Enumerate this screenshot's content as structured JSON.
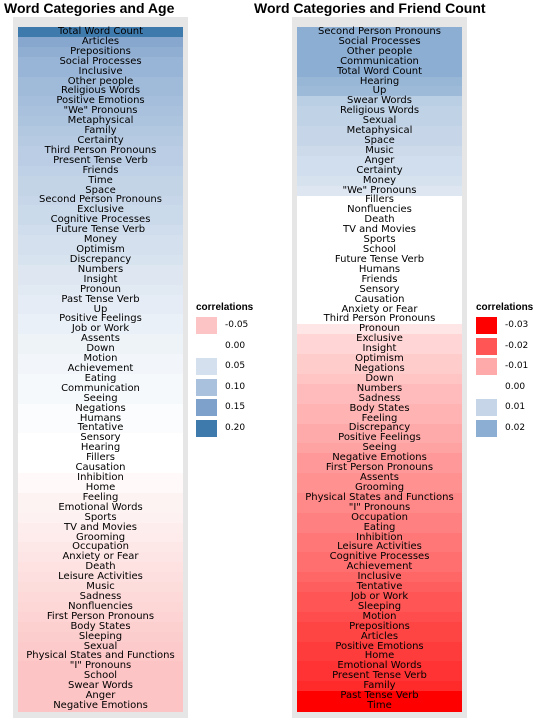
{
  "chart_data": [
    {
      "type": "heatmap",
      "title": "Word Categories and Age",
      "legend": {
        "title": "correlations",
        "position": "right",
        "items": [
          {
            "label": "-0.05",
            "color": "#fcc4c4"
          },
          {
            "label": "0.00",
            "color": "#ffffff"
          },
          {
            "label": "0.05",
            "color": "#d4e0ee"
          },
          {
            "label": "0.10",
            "color": "#a9c1dd"
          },
          {
            "label": "0.15",
            "color": "#7ea1cb"
          },
          {
            "label": "0.20",
            "color": "#3f7aad"
          }
        ]
      },
      "categories": [
        "Total Word Count",
        "Articles",
        "Prepositions",
        "Social Processes",
        "Inclusive",
        "Other people",
        "Religious Words",
        "Positive Emotions",
        "\"We\" Pronouns",
        "Metaphysical",
        "Family",
        "Certainty",
        "Third Person Pronouns",
        "Present Tense Verb",
        "Friends",
        "Time",
        "Space",
        "Second Person Pronouns",
        "Exclusive",
        "Cognitive Processes",
        "Future Tense Verb",
        "Money",
        "Optimism",
        "Discrepancy",
        "Numbers",
        "Insight",
        "Pronoun",
        "Past Tense Verb",
        "Up",
        "Positive Feelings",
        "Job or Work",
        "Assents",
        "Down",
        "Motion",
        "Achievement",
        "Eating",
        "Communication",
        "Seeing",
        "Negations",
        "Humans",
        "Tentative",
        "Sensory",
        "Hearing",
        "Fillers",
        "Causation",
        "Inhibition",
        "Home",
        "Feeling",
        "Emotional Words",
        "Sports",
        "TV and Movies",
        "Grooming",
        "Occupation",
        "Anxiety or Fear",
        "Death",
        "Leisure Activities",
        "Music",
        "Sadness",
        "Nonfluencies",
        "First Person Pronouns",
        "Body States",
        "Sleeping",
        "Sexual",
        "Physical States and Functions",
        "\"I\" Pronouns",
        "School",
        "Swear Words",
        "Anger",
        "Negative Emotions"
      ],
      "values": [
        0.22,
        0.14,
        0.13,
        0.12,
        0.12,
        0.11,
        0.11,
        0.105,
        0.1,
        0.095,
        0.09,
        0.085,
        0.08,
        0.08,
        0.075,
        0.07,
        0.07,
        0.065,
        0.06,
        0.06,
        0.055,
        0.05,
        0.05,
        0.045,
        0.04,
        0.04,
        0.035,
        0.03,
        0.03,
        0.025,
        0.025,
        0.02,
        0.02,
        0.015,
        0.015,
        0.01,
        0.01,
        0.01,
        0.005,
        0.005,
        0.005,
        0.0,
        0.0,
        0.0,
        0.0,
        -0.005,
        -0.005,
        -0.01,
        -0.01,
        -0.012,
        -0.015,
        -0.017,
        -0.02,
        -0.022,
        -0.025,
        -0.027,
        -0.03,
        -0.032,
        -0.035,
        -0.037,
        -0.04,
        -0.042,
        -0.045,
        -0.047,
        -0.05,
        -0.052,
        -0.055,
        -0.06,
        -0.07
      ]
    },
    {
      "type": "heatmap",
      "title": "Word Categories and Friend Count",
      "legend": {
        "title": "correlations",
        "position": "right",
        "items": [
          {
            "label": "-0.03",
            "color": "#ff0000"
          },
          {
            "label": "-0.02",
            "color": "#ff5555"
          },
          {
            "label": "-0.01",
            "color": "#ffaaaa"
          },
          {
            "label": "0.00",
            "color": "#ffffff"
          },
          {
            "label": "0.01",
            "color": "#c6d6e8"
          },
          {
            "label": "0.02",
            "color": "#8caed2"
          }
        ]
      },
      "categories": [
        "Second Person Pronouns",
        "Social Processes",
        "Other people",
        "Communication",
        "Total Word Count",
        "Hearing",
        "Up",
        "Swear Words",
        "Religious Words",
        "Sexual",
        "Metaphysical",
        "Space",
        "Music",
        "Anger",
        "Certainty",
        "Money",
        "\"We\" Pronouns",
        "Fillers",
        "Nonfluencies",
        "Death",
        "TV and Movies",
        "Sports",
        "School",
        "Future Tense Verb",
        "Humans",
        "Friends",
        "Sensory",
        "Causation",
        "Anxiety or Fear",
        "Third Person Pronouns",
        "Pronoun",
        "Exclusive",
        "Insight",
        "Optimism",
        "Negations",
        "Down",
        "Numbers",
        "Sadness",
        "Body States",
        "Feeling",
        "Discrepancy",
        "Positive Feelings",
        "Seeing",
        "Negative Emotions",
        "First Person Pronouns",
        "Assents",
        "Grooming",
        "Physical States and Functions",
        "\"I\" Pronouns",
        "Occupation",
        "Eating",
        "Inhibition",
        "Leisure Activities",
        "Cognitive Processes",
        "Achievement",
        "Inclusive",
        "Tentative",
        "Job or Work",
        "Sleeping",
        "Motion",
        "Prepositions",
        "Articles",
        "Positive Emotions",
        "Home",
        "Emotional Words",
        "Present Tense Verb",
        "Family",
        "Past Tense Verb",
        "Time"
      ],
      "values": [
        0.03,
        0.022,
        0.022,
        0.021,
        0.02,
        0.018,
        0.017,
        0.012,
        0.011,
        0.011,
        0.01,
        0.01,
        0.009,
        0.008,
        0.008,
        0.007,
        0.006,
        0.0,
        0.0,
        0.0,
        0.0,
        0.0,
        0.0,
        0.0,
        0.0,
        0.0,
        0.0,
        0.0,
        0.0,
        0.0,
        -0.003,
        -0.005,
        -0.005,
        -0.006,
        -0.006,
        -0.007,
        -0.008,
        -0.008,
        -0.009,
        -0.009,
        -0.01,
        -0.01,
        -0.011,
        -0.012,
        -0.012,
        -0.013,
        -0.013,
        -0.014,
        -0.014,
        -0.015,
        -0.015,
        -0.016,
        -0.016,
        -0.017,
        -0.017,
        -0.018,
        -0.019,
        -0.02,
        -0.02,
        -0.021,
        -0.022,
        -0.022,
        -0.023,
        -0.023,
        -0.024,
        -0.024,
        -0.025,
        -0.035,
        -0.037
      ]
    }
  ]
}
